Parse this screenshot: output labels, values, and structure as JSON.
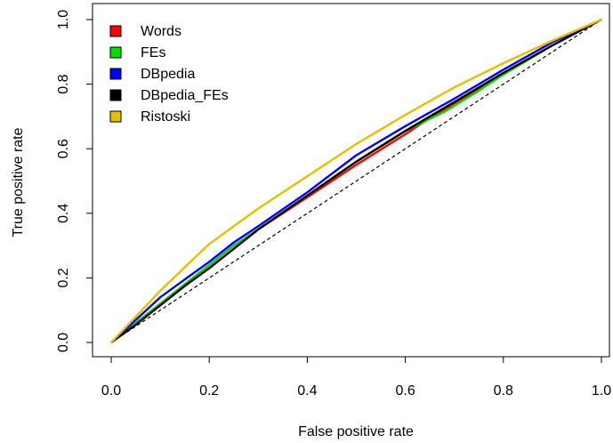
{
  "chart_data": {
    "type": "line",
    "title": "",
    "xlabel": "False positive rate",
    "ylabel": "True positive rate",
    "xlim": [
      0,
      1
    ],
    "ylim": [
      0,
      1
    ],
    "xticks": [
      "0.0",
      "0.2",
      "0.4",
      "0.6",
      "0.8",
      "1.0"
    ],
    "yticks": [
      "0.0",
      "0.2",
      "0.4",
      "0.6",
      "0.8",
      "1.0"
    ],
    "legend_position": "top-left",
    "grid": false,
    "diagonal_reference": {
      "style": "dashed",
      "color": "#000000"
    },
    "series": [
      {
        "name": "Words",
        "color": "#ff0000",
        "x": [
          0,
          0.05,
          0.1,
          0.15,
          0.2,
          0.25,
          0.3,
          0.4,
          0.5,
          0.6,
          0.64,
          0.7,
          0.8,
          0.9,
          1.0
        ],
        "y": [
          0,
          0.06,
          0.12,
          0.18,
          0.24,
          0.3,
          0.35,
          0.45,
          0.55,
          0.645,
          0.685,
          0.74,
          0.83,
          0.92,
          1.0
        ]
      },
      {
        "name": "FEs",
        "color": "#00dd00",
        "x": [
          0,
          0.05,
          0.1,
          0.15,
          0.2,
          0.25,
          0.3,
          0.4,
          0.5,
          0.6,
          0.68,
          0.75,
          0.8,
          0.9,
          1.0
        ],
        "y": [
          0,
          0.06,
          0.12,
          0.18,
          0.24,
          0.3,
          0.35,
          0.455,
          0.56,
          0.655,
          0.715,
          0.78,
          0.83,
          0.92,
          1.0
        ]
      },
      {
        "name": "DBpedia",
        "color": "#0000ff",
        "x": [
          0,
          0.05,
          0.1,
          0.15,
          0.2,
          0.25,
          0.3,
          0.4,
          0.5,
          0.6,
          0.7,
          0.8,
          0.9,
          1.0
        ],
        "y": [
          0,
          0.07,
          0.14,
          0.195,
          0.25,
          0.31,
          0.36,
          0.465,
          0.58,
          0.67,
          0.755,
          0.845,
          0.93,
          1.0
        ]
      },
      {
        "name": "DBpedia_FEs",
        "color": "#000000",
        "x": [
          0,
          0.05,
          0.1,
          0.15,
          0.2,
          0.25,
          0.3,
          0.4,
          0.5,
          0.6,
          0.7,
          0.8,
          0.9,
          1.0
        ],
        "y": [
          0,
          0.055,
          0.115,
          0.175,
          0.23,
          0.29,
          0.35,
          0.455,
          0.56,
          0.655,
          0.745,
          0.835,
          0.92,
          1.0
        ]
      },
      {
        "name": "Ristoski",
        "color": "#e6c000",
        "x": [
          0,
          0.05,
          0.1,
          0.2,
          0.3,
          0.4,
          0.5,
          0.6,
          0.7,
          0.8,
          0.9,
          1.0
        ],
        "y": [
          0,
          0.08,
          0.16,
          0.305,
          0.415,
          0.515,
          0.615,
          0.705,
          0.79,
          0.865,
          0.935,
          1.0
        ]
      }
    ]
  }
}
